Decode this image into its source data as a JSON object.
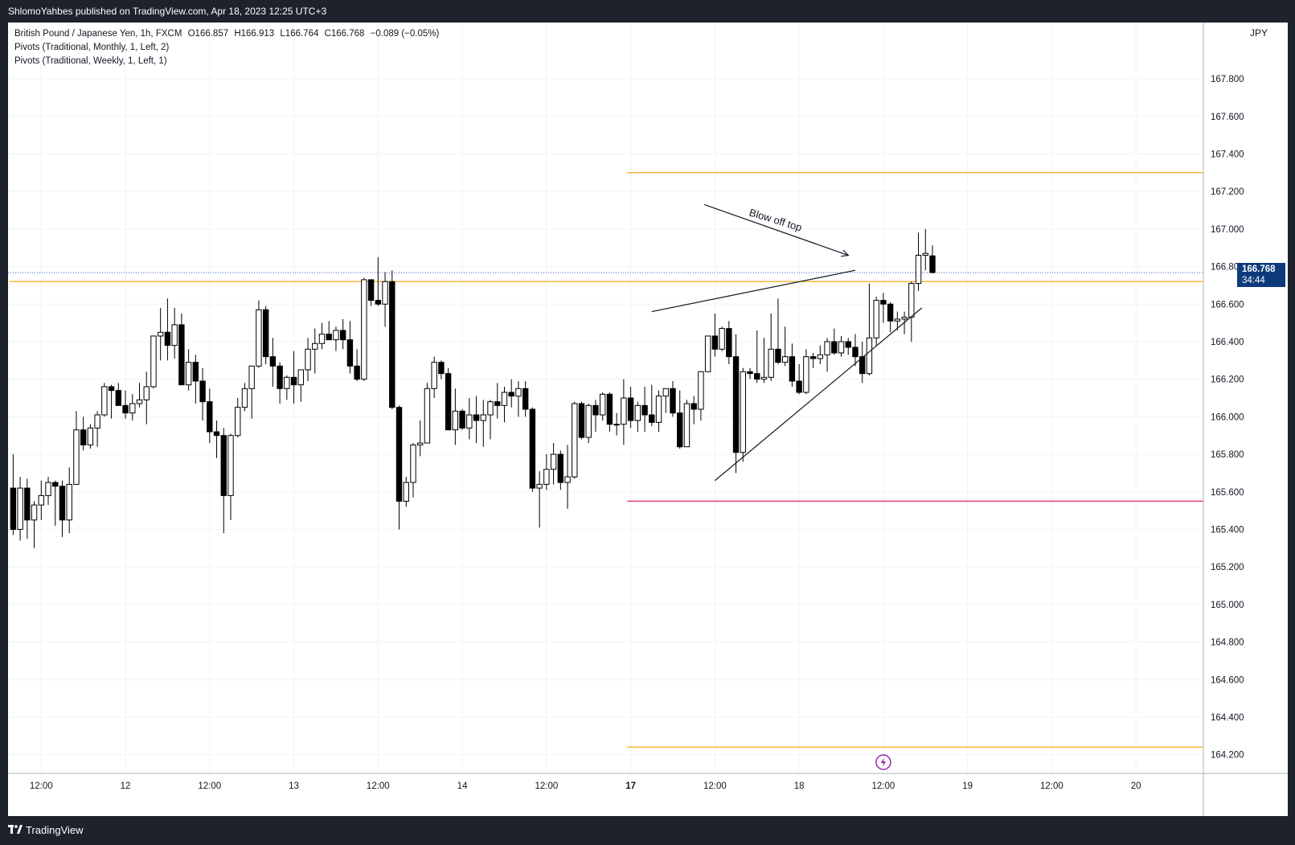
{
  "header": {
    "published_text": "ShlomoYahbes published on TradingView.com, Apr 18, 2023 12:25 UTC+3"
  },
  "legend": {
    "symbol": "British Pound / Japanese Yen, 1h, FXCM",
    "open": "O166.857",
    "high": "H166.913",
    "low": "L166.764",
    "close": "C166.768",
    "change": "−0.089 (−0.05%)",
    "indicator1": "Pivots (Traditional, Monthly, 1, Left, 2)",
    "indicator2": "Pivots (Traditional, Weekly, 1, Left, 1)"
  },
  "price_axis": {
    "currency": "JPY",
    "current_price": "166.768",
    "countdown": "34:44"
  },
  "footer": {
    "brand": "TradingView"
  },
  "colors": {
    "up_candle": "#ffffff",
    "down_candle": "#000000",
    "pivot_orange": "#f5b83d",
    "pivot_pink": "#e0407a",
    "current_price_line": "#2a5cb8",
    "price_tag": "#0d3a7a",
    "annotation_line": "#131722",
    "event_icon": "#9c27b0"
  },
  "chart_data": {
    "type": "candlestick",
    "symbol": "GBPJPY",
    "timeframe": "1h",
    "ylim": [
      164.1,
      168.1
    ],
    "y_ticks": [
      164.2,
      164.4,
      164.6,
      164.8,
      165.0,
      165.2,
      165.4,
      165.6,
      165.8,
      166.0,
      166.2,
      166.4,
      166.6,
      166.8,
      167.0,
      167.2,
      167.4,
      167.6,
      167.8
    ],
    "y_tick_labels": [
      "164.200",
      "164.400",
      "164.600",
      "164.800",
      "165.000",
      "165.200",
      "165.400",
      "165.600",
      "165.800",
      "166.000",
      "166.200",
      "166.400",
      "166.600",
      "166.800",
      "167.000",
      "167.200",
      "167.400",
      "167.600",
      "167.800"
    ],
    "x_tick_labels": [
      {
        "bar": 4,
        "label": "12:00",
        "bold": false
      },
      {
        "bar": 16,
        "label": "12",
        "bold": false
      },
      {
        "bar": 28,
        "label": "12:00",
        "bold": false
      },
      {
        "bar": 40,
        "label": "13",
        "bold": false
      },
      {
        "bar": 52,
        "label": "12:00",
        "bold": false
      },
      {
        "bar": 64,
        "label": "14",
        "bold": false
      },
      {
        "bar": 76,
        "label": "12:00",
        "bold": false
      },
      {
        "bar": 88,
        "label": "17",
        "bold": true
      },
      {
        "bar": 100,
        "label": "12:00",
        "bold": false
      },
      {
        "bar": 112,
        "label": "18",
        "bold": false
      },
      {
        "bar": 124,
        "label": "12:00",
        "bold": false
      },
      {
        "bar": 136,
        "label": "19",
        "bold": false
      },
      {
        "bar": 148,
        "label": "12:00",
        "bold": false
      },
      {
        "bar": 160,
        "label": "20",
        "bold": false
      }
    ],
    "x_bar_range": [
      0,
      170
    ],
    "candles": [
      {
        "o": 165.62,
        "h": 165.8,
        "l": 165.37,
        "c": 165.4
      },
      {
        "o": 165.4,
        "h": 165.68,
        "l": 165.34,
        "c": 165.62
      },
      {
        "o": 165.62,
        "h": 165.67,
        "l": 165.35,
        "c": 165.45
      },
      {
        "o": 165.45,
        "h": 165.55,
        "l": 165.3,
        "c": 165.53
      },
      {
        "o": 165.53,
        "h": 165.66,
        "l": 165.45,
        "c": 165.58
      },
      {
        "o": 165.58,
        "h": 165.68,
        "l": 165.53,
        "c": 165.65
      },
      {
        "o": 165.65,
        "h": 165.66,
        "l": 165.42,
        "c": 165.63
      },
      {
        "o": 165.63,
        "h": 165.66,
        "l": 165.36,
        "c": 165.45
      },
      {
        "o": 165.45,
        "h": 165.73,
        "l": 165.38,
        "c": 165.64
      },
      {
        "o": 165.64,
        "h": 166.03,
        "l": 165.64,
        "c": 165.93
      },
      {
        "o": 165.93,
        "h": 166.0,
        "l": 165.82,
        "c": 165.85
      },
      {
        "o": 165.85,
        "h": 165.96,
        "l": 165.83,
        "c": 165.94
      },
      {
        "o": 165.94,
        "h": 166.03,
        "l": 165.84,
        "c": 166.01
      },
      {
        "o": 166.01,
        "h": 166.18,
        "l": 166.0,
        "c": 166.16
      },
      {
        "o": 166.16,
        "h": 166.17,
        "l": 165.99,
        "c": 166.14
      },
      {
        "o": 166.14,
        "h": 166.18,
        "l": 166.07,
        "c": 166.06
      },
      {
        "o": 166.06,
        "h": 166.14,
        "l": 165.99,
        "c": 166.02
      },
      {
        "o": 166.02,
        "h": 166.12,
        "l": 165.98,
        "c": 166.07
      },
      {
        "o": 166.07,
        "h": 166.18,
        "l": 166.05,
        "c": 166.09
      },
      {
        "o": 166.09,
        "h": 166.24,
        "l": 165.96,
        "c": 166.16
      },
      {
        "o": 166.16,
        "h": 166.42,
        "l": 166.15,
        "c": 166.43
      },
      {
        "o": 166.43,
        "h": 166.58,
        "l": 166.3,
        "c": 166.45
      },
      {
        "o": 166.45,
        "h": 166.63,
        "l": 166.3,
        "c": 166.38
      },
      {
        "o": 166.38,
        "h": 166.58,
        "l": 166.31,
        "c": 166.49
      },
      {
        "o": 166.49,
        "h": 166.55,
        "l": 166.18,
        "c": 166.17
      },
      {
        "o": 166.17,
        "h": 166.36,
        "l": 166.14,
        "c": 166.29
      },
      {
        "o": 166.29,
        "h": 166.33,
        "l": 166.07,
        "c": 166.19
      },
      {
        "o": 166.19,
        "h": 166.26,
        "l": 165.98,
        "c": 166.08
      },
      {
        "o": 166.08,
        "h": 166.15,
        "l": 165.86,
        "c": 165.92
      },
      {
        "o": 165.92,
        "h": 165.98,
        "l": 165.78,
        "c": 165.9
      },
      {
        "o": 165.9,
        "h": 165.94,
        "l": 165.38,
        "c": 165.58
      },
      {
        "o": 165.58,
        "h": 165.91,
        "l": 165.45,
        "c": 165.9
      },
      {
        "o": 165.9,
        "h": 166.1,
        "l": 165.89,
        "c": 166.05
      },
      {
        "o": 166.05,
        "h": 166.18,
        "l": 166.03,
        "c": 166.15
      },
      {
        "o": 166.15,
        "h": 166.25,
        "l": 165.99,
        "c": 166.27
      },
      {
        "o": 166.27,
        "h": 166.62,
        "l": 166.26,
        "c": 166.57
      },
      {
        "o": 166.57,
        "h": 166.59,
        "l": 166.28,
        "c": 166.32
      },
      {
        "o": 166.32,
        "h": 166.42,
        "l": 166.16,
        "c": 166.27
      },
      {
        "o": 166.27,
        "h": 166.29,
        "l": 166.07,
        "c": 166.15
      },
      {
        "o": 166.15,
        "h": 166.22,
        "l": 166.09,
        "c": 166.21
      },
      {
        "o": 166.21,
        "h": 166.35,
        "l": 166.07,
        "c": 166.17
      },
      {
        "o": 166.17,
        "h": 166.24,
        "l": 166.08,
        "c": 166.25
      },
      {
        "o": 166.25,
        "h": 166.42,
        "l": 166.19,
        "c": 166.36
      },
      {
        "o": 166.36,
        "h": 166.47,
        "l": 166.23,
        "c": 166.39
      },
      {
        "o": 166.39,
        "h": 166.5,
        "l": 166.36,
        "c": 166.44
      },
      {
        "o": 166.44,
        "h": 166.51,
        "l": 166.41,
        "c": 166.41
      },
      {
        "o": 166.41,
        "h": 166.48,
        "l": 166.35,
        "c": 166.46
      },
      {
        "o": 166.46,
        "h": 166.52,
        "l": 166.36,
        "c": 166.41
      },
      {
        "o": 166.41,
        "h": 166.51,
        "l": 166.23,
        "c": 166.27
      },
      {
        "o": 166.27,
        "h": 166.36,
        "l": 166.19,
        "c": 166.2
      },
      {
        "o": 166.2,
        "h": 166.74,
        "l": 166.19,
        "c": 166.73
      },
      {
        "o": 166.73,
        "h": 166.73,
        "l": 166.59,
        "c": 166.62
      },
      {
        "o": 166.62,
        "h": 166.85,
        "l": 166.59,
        "c": 166.6
      },
      {
        "o": 166.6,
        "h": 166.77,
        "l": 166.48,
        "c": 166.72
      },
      {
        "o": 166.72,
        "h": 166.78,
        "l": 166.04,
        "c": 166.05
      },
      {
        "o": 166.05,
        "h": 166.06,
        "l": 165.4,
        "c": 165.55
      },
      {
        "o": 165.55,
        "h": 165.68,
        "l": 165.52,
        "c": 165.65
      },
      {
        "o": 165.65,
        "h": 165.86,
        "l": 165.57,
        "c": 165.85
      },
      {
        "o": 165.85,
        "h": 165.98,
        "l": 165.79,
        "c": 165.86
      },
      {
        "o": 165.86,
        "h": 166.18,
        "l": 165.86,
        "c": 166.15
      },
      {
        "o": 166.15,
        "h": 166.32,
        "l": 166.1,
        "c": 166.29
      },
      {
        "o": 166.29,
        "h": 166.3,
        "l": 166.2,
        "c": 166.23
      },
      {
        "o": 166.23,
        "h": 166.26,
        "l": 165.95,
        "c": 165.93
      },
      {
        "o": 165.93,
        "h": 166.15,
        "l": 165.85,
        "c": 166.03
      },
      {
        "o": 166.03,
        "h": 166.04,
        "l": 165.93,
        "c": 165.94
      },
      {
        "o": 165.94,
        "h": 166.1,
        "l": 165.88,
        "c": 166.01
      },
      {
        "o": 166.01,
        "h": 166.11,
        "l": 165.86,
        "c": 165.98
      },
      {
        "o": 165.98,
        "h": 166.09,
        "l": 165.84,
        "c": 166.01
      },
      {
        "o": 166.01,
        "h": 166.09,
        "l": 165.88,
        "c": 166.08
      },
      {
        "o": 166.08,
        "h": 166.18,
        "l": 165.99,
        "c": 166.06
      },
      {
        "o": 166.06,
        "h": 166.16,
        "l": 165.97,
        "c": 166.13
      },
      {
        "o": 166.13,
        "h": 166.2,
        "l": 166.05,
        "c": 166.11
      },
      {
        "o": 166.11,
        "h": 166.19,
        "l": 166.0,
        "c": 166.15
      },
      {
        "o": 166.15,
        "h": 166.19,
        "l": 166.0,
        "c": 166.04
      },
      {
        "o": 166.04,
        "h": 166.05,
        "l": 165.6,
        "c": 165.62
      },
      {
        "o": 165.62,
        "h": 165.71,
        "l": 165.41,
        "c": 165.64
      },
      {
        "o": 165.64,
        "h": 165.8,
        "l": 165.61,
        "c": 165.72
      },
      {
        "o": 165.72,
        "h": 165.86,
        "l": 165.64,
        "c": 165.8
      },
      {
        "o": 165.8,
        "h": 165.82,
        "l": 165.61,
        "c": 165.65
      },
      {
        "o": 165.65,
        "h": 165.85,
        "l": 165.51,
        "c": 165.68
      },
      {
        "o": 165.68,
        "h": 166.08,
        "l": 165.67,
        "c": 166.07
      },
      {
        "o": 166.07,
        "h": 166.08,
        "l": 165.88,
        "c": 165.89
      },
      {
        "o": 165.89,
        "h": 166.07,
        "l": 165.86,
        "c": 166.06
      },
      {
        "o": 166.06,
        "h": 166.09,
        "l": 165.92,
        "c": 166.01
      },
      {
        "o": 166.01,
        "h": 166.13,
        "l": 165.98,
        "c": 166.12
      },
      {
        "o": 166.12,
        "h": 166.13,
        "l": 165.92,
        "c": 165.96
      },
      {
        "o": 165.96,
        "h": 166.02,
        "l": 165.9,
        "c": 165.96
      },
      {
        "o": 165.96,
        "h": 166.2,
        "l": 165.85,
        "c": 166.1
      },
      {
        "o": 166.1,
        "h": 166.16,
        "l": 165.94,
        "c": 165.98
      },
      {
        "o": 165.98,
        "h": 166.08,
        "l": 165.92,
        "c": 166.06
      },
      {
        "o": 166.06,
        "h": 166.16,
        "l": 165.92,
        "c": 166.01
      },
      {
        "o": 166.01,
        "h": 166.17,
        "l": 165.95,
        "c": 165.97
      },
      {
        "o": 165.97,
        "h": 166.14,
        "l": 165.92,
        "c": 166.11
      },
      {
        "o": 166.11,
        "h": 166.15,
        "l": 166.02,
        "c": 166.15
      },
      {
        "o": 166.15,
        "h": 166.19,
        "l": 166.0,
        "c": 166.02
      },
      {
        "o": 166.02,
        "h": 166.14,
        "l": 165.83,
        "c": 165.84
      },
      {
        "o": 165.84,
        "h": 166.09,
        "l": 165.84,
        "c": 166.07
      },
      {
        "o": 166.07,
        "h": 166.11,
        "l": 165.96,
        "c": 166.04
      },
      {
        "o": 166.04,
        "h": 166.23,
        "l": 165.98,
        "c": 166.24
      },
      {
        "o": 166.24,
        "h": 166.43,
        "l": 166.24,
        "c": 166.43
      },
      {
        "o": 166.43,
        "h": 166.55,
        "l": 166.32,
        "c": 166.36
      },
      {
        "o": 166.36,
        "h": 166.48,
        "l": 166.35,
        "c": 166.47
      },
      {
        "o": 166.47,
        "h": 166.51,
        "l": 166.28,
        "c": 166.32
      },
      {
        "o": 166.32,
        "h": 166.44,
        "l": 165.7,
        "c": 165.81
      },
      {
        "o": 165.81,
        "h": 166.26,
        "l": 165.76,
        "c": 166.24
      },
      {
        "o": 166.24,
        "h": 166.26,
        "l": 166.2,
        "c": 166.23
      },
      {
        "o": 166.23,
        "h": 166.46,
        "l": 166.18,
        "c": 166.2
      },
      {
        "o": 166.2,
        "h": 166.42,
        "l": 166.18,
        "c": 166.21
      },
      {
        "o": 166.21,
        "h": 166.55,
        "l": 166.19,
        "c": 166.36
      },
      {
        "o": 166.36,
        "h": 166.63,
        "l": 166.28,
        "c": 166.29
      },
      {
        "o": 166.29,
        "h": 166.48,
        "l": 166.27,
        "c": 166.32
      },
      {
        "o": 166.32,
        "h": 166.39,
        "l": 166.16,
        "c": 166.19
      },
      {
        "o": 166.19,
        "h": 166.28,
        "l": 166.12,
        "c": 166.13
      },
      {
        "o": 166.13,
        "h": 166.36,
        "l": 166.12,
        "c": 166.32
      },
      {
        "o": 166.32,
        "h": 166.34,
        "l": 166.26,
        "c": 166.31
      },
      {
        "o": 166.31,
        "h": 166.38,
        "l": 166.28,
        "c": 166.33
      },
      {
        "o": 166.33,
        "h": 166.42,
        "l": 166.24,
        "c": 166.4
      },
      {
        "o": 166.4,
        "h": 166.47,
        "l": 166.33,
        "c": 166.34
      },
      {
        "o": 166.34,
        "h": 166.43,
        "l": 166.32,
        "c": 166.4
      },
      {
        "o": 166.4,
        "h": 166.42,
        "l": 166.33,
        "c": 166.37
      },
      {
        "o": 166.37,
        "h": 166.44,
        "l": 166.27,
        "c": 166.32
      },
      {
        "o": 166.32,
        "h": 166.4,
        "l": 166.18,
        "c": 166.23
      },
      {
        "o": 166.23,
        "h": 166.71,
        "l": 166.22,
        "c": 166.42
      },
      {
        "o": 166.42,
        "h": 166.64,
        "l": 166.38,
        "c": 166.62
      },
      {
        "o": 166.62,
        "h": 166.66,
        "l": 166.5,
        "c": 166.6
      },
      {
        "o": 166.6,
        "h": 166.61,
        "l": 166.45,
        "c": 166.51
      },
      {
        "o": 166.51,
        "h": 166.56,
        "l": 166.46,
        "c": 166.52
      },
      {
        "o": 166.52,
        "h": 166.56,
        "l": 166.44,
        "c": 166.53
      },
      {
        "o": 166.53,
        "h": 166.72,
        "l": 166.4,
        "c": 166.71
      },
      {
        "o": 166.71,
        "h": 166.98,
        "l": 166.67,
        "c": 166.86
      },
      {
        "o": 166.86,
        "h": 167.0,
        "l": 166.78,
        "c": 166.87
      },
      {
        "o": 166.857,
        "h": 166.913,
        "l": 166.764,
        "c": 166.768
      }
    ],
    "horizontal_levels": [
      {
        "price": 167.3,
        "color": "orange",
        "from_bar": 88
      },
      {
        "price": 166.72,
        "color": "orange",
        "from_bar": 0
      },
      {
        "price": 165.55,
        "color": "pink",
        "from_bar": 88
      },
      {
        "price": 164.24,
        "color": "orange",
        "from_bar": 88
      }
    ],
    "current_price": 166.768,
    "trendlines": [
      {
        "from": [
          91,
          166.56
        ],
        "to": [
          120,
          166.78
        ]
      },
      {
        "from": [
          100,
          165.66
        ],
        "to": [
          129.5,
          166.58
        ]
      },
      {
        "from": [
          98.5,
          167.13
        ],
        "to": [
          119,
          166.86
        ],
        "arrow": true
      }
    ],
    "annotation": {
      "text": "Blow off top",
      "bar": 108.5,
      "price": 167.03
    }
  }
}
